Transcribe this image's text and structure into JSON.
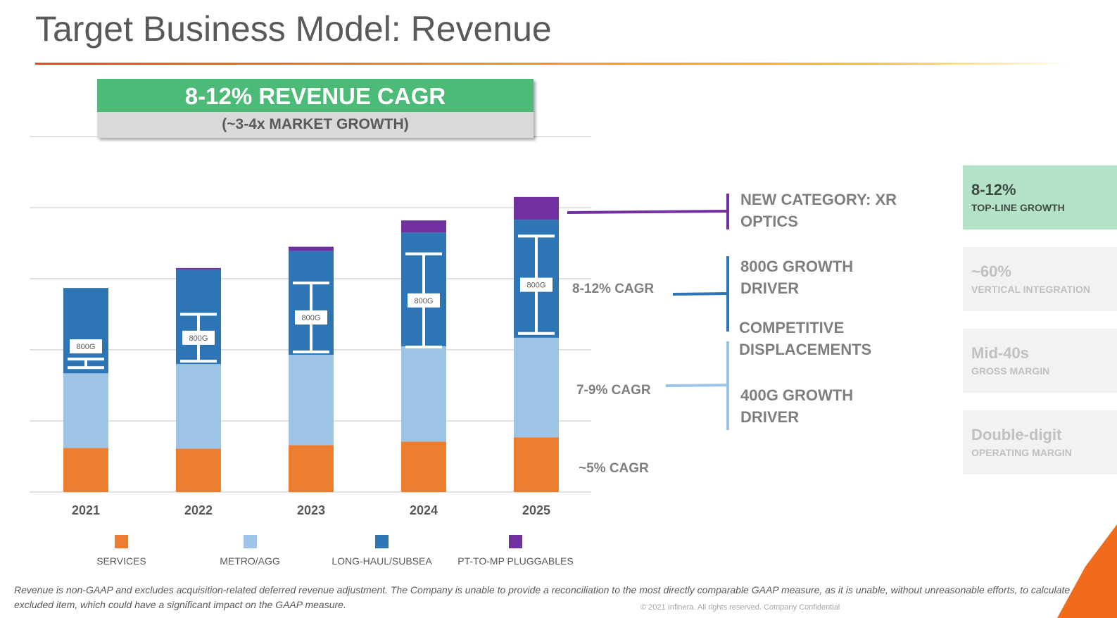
{
  "title": "Target Business Model: Revenue",
  "headline": {
    "main": "8-12% REVENUE CAGR",
    "sub": "(~3-4x MARKET GROWTH)"
  },
  "colors": {
    "services": "#ed7d31",
    "metro": "#9dc3e6",
    "longhaul": "#2e75b6",
    "pluggables": "#7030a0",
    "accent_green": "#4dbb78"
  },
  "chart_data": {
    "type": "bar",
    "stacked": true,
    "categories": [
      "2021",
      "2022",
      "2023",
      "2024",
      "2025"
    ],
    "series": [
      {
        "name": "SERVICES",
        "values": [
          0.62,
          0.61,
          0.66,
          0.71,
          0.77
        ]
      },
      {
        "name": "METRO/AGG",
        "values": [
          1.05,
          1.19,
          1.27,
          1.34,
          1.4
        ]
      },
      {
        "name": "LONG-HAUL/SUBSEA",
        "values": [
          1.2,
          1.33,
          1.46,
          1.6,
          1.66
        ]
      },
      {
        "name": "PT-TO-MP PLUGGABLES",
        "values": [
          0,
          0.02,
          0.06,
          0.17,
          0.32
        ]
      }
    ],
    "ranges_800g": {
      "label": "800G",
      "ranges": [
        [
          1.75,
          1.87
        ],
        [
          1.84,
          2.5
        ],
        [
          1.97,
          2.94
        ],
        [
          2.04,
          3.35
        ],
        [
          2.23,
          3.6
        ]
      ]
    },
    "ylim": [
      0,
      5
    ],
    "y_axis_labels": false,
    "grid": true,
    "legend": "bottom",
    "segment_notes": [
      "8-12% CAGR",
      "7-9% CAGR",
      "~5% CAGR"
    ]
  },
  "annotations": [
    {
      "text": "NEW CATEGORY: XR OPTICS",
      "color": "#7030a0"
    },
    {
      "text": "800G GROWTH DRIVER",
      "color": "#2e75b6"
    },
    {
      "text": "COMPETITIVE DISPLACEMENTS",
      "color": "#9dc3e6"
    },
    {
      "text": "400G GROWTH DRIVER",
      "color": "#9dc3e6"
    }
  ],
  "kpis": [
    {
      "value": "8-12%",
      "label": "TOP-LINE GROWTH",
      "active": true
    },
    {
      "value": "~60%",
      "label": "VERTICAL INTEGRATION",
      "active": false
    },
    {
      "value": "Mid-40s",
      "label": "GROSS MARGIN",
      "active": false
    },
    {
      "value": "Double-digit",
      "label": "OPERATING MARGIN",
      "active": false
    }
  ],
  "footnote": "Revenue is non-GAAP and excludes acquisition-related deferred revenue adjustment. The Company is unable to provide a reconciliation to the most directly comparable GAAP measure, as it is unable, without unreasonable efforts, to calculate such excluded item, which could have a significant impact on the GAAP measure.",
  "copyright": "© 2021 Infinera. All rights reserved. Company Confidential"
}
